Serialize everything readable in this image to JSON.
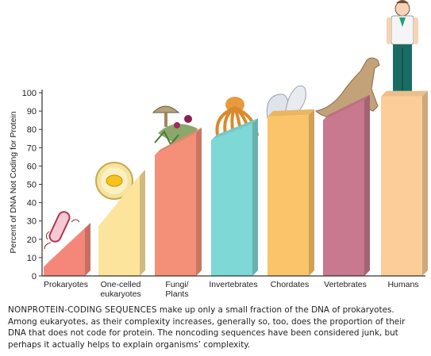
{
  "chart_data": {
    "type": "bar",
    "ylabel": "Percent of DNA Not Coding for Protein",
    "ylim": [
      0,
      100
    ],
    "yticks": [
      0,
      10,
      20,
      30,
      40,
      50,
      60,
      70,
      80,
      90,
      100
    ],
    "categories": [
      "Prokaryotes",
      "One-celled eukaryotes",
      "Fungi/ Plants",
      "Invertebrates",
      "Chordates",
      "Vertebrates",
      "Humans"
    ],
    "category_lines": [
      [
        "Prokaryotes"
      ],
      [
        "One-celled",
        "eukaryotes"
      ],
      [
        "Fungi/",
        "Plants"
      ],
      [
        "Invertebrates"
      ],
      [
        "Chordates"
      ],
      [
        "Vertebrates"
      ],
      [
        "Humans"
      ]
    ],
    "ranges": [
      {
        "low": 5,
        "high": 26
      },
      {
        "low": 27,
        "high": 55
      },
      {
        "low": 66,
        "high": 78
      },
      {
        "low": 74,
        "high": 83
      },
      {
        "low": 87,
        "high": 88
      },
      {
        "low": 85,
        "high": 96
      },
      {
        "low": 98,
        "high": 98
      }
    ],
    "colors": [
      "#f4877a",
      "#fde49d",
      "#f59078",
      "#7dd8d6",
      "#fcc46a",
      "#c8788f",
      "#fccd98"
    ],
    "grid": false,
    "legend": "none"
  },
  "caption": {
    "lead": "NONPROTEIN-CODING SEQUENCES",
    "body": " make up only a small fraction of the DNA of prokaryotes. Among eukaryotes, as their complexity increases, generally so, too, does the proportion of their DNA that does not code for protein. The noncoding sequences have been considered junk, but perhaps it actually helps to explain organisms’ complexity."
  },
  "illustrations": [
    "bacterium-icon",
    "cell-icon",
    "mushroom-and-plants-icon",
    "octopus-icon",
    "sea-squirt-icon",
    "dog-icon",
    "human-icon"
  ]
}
